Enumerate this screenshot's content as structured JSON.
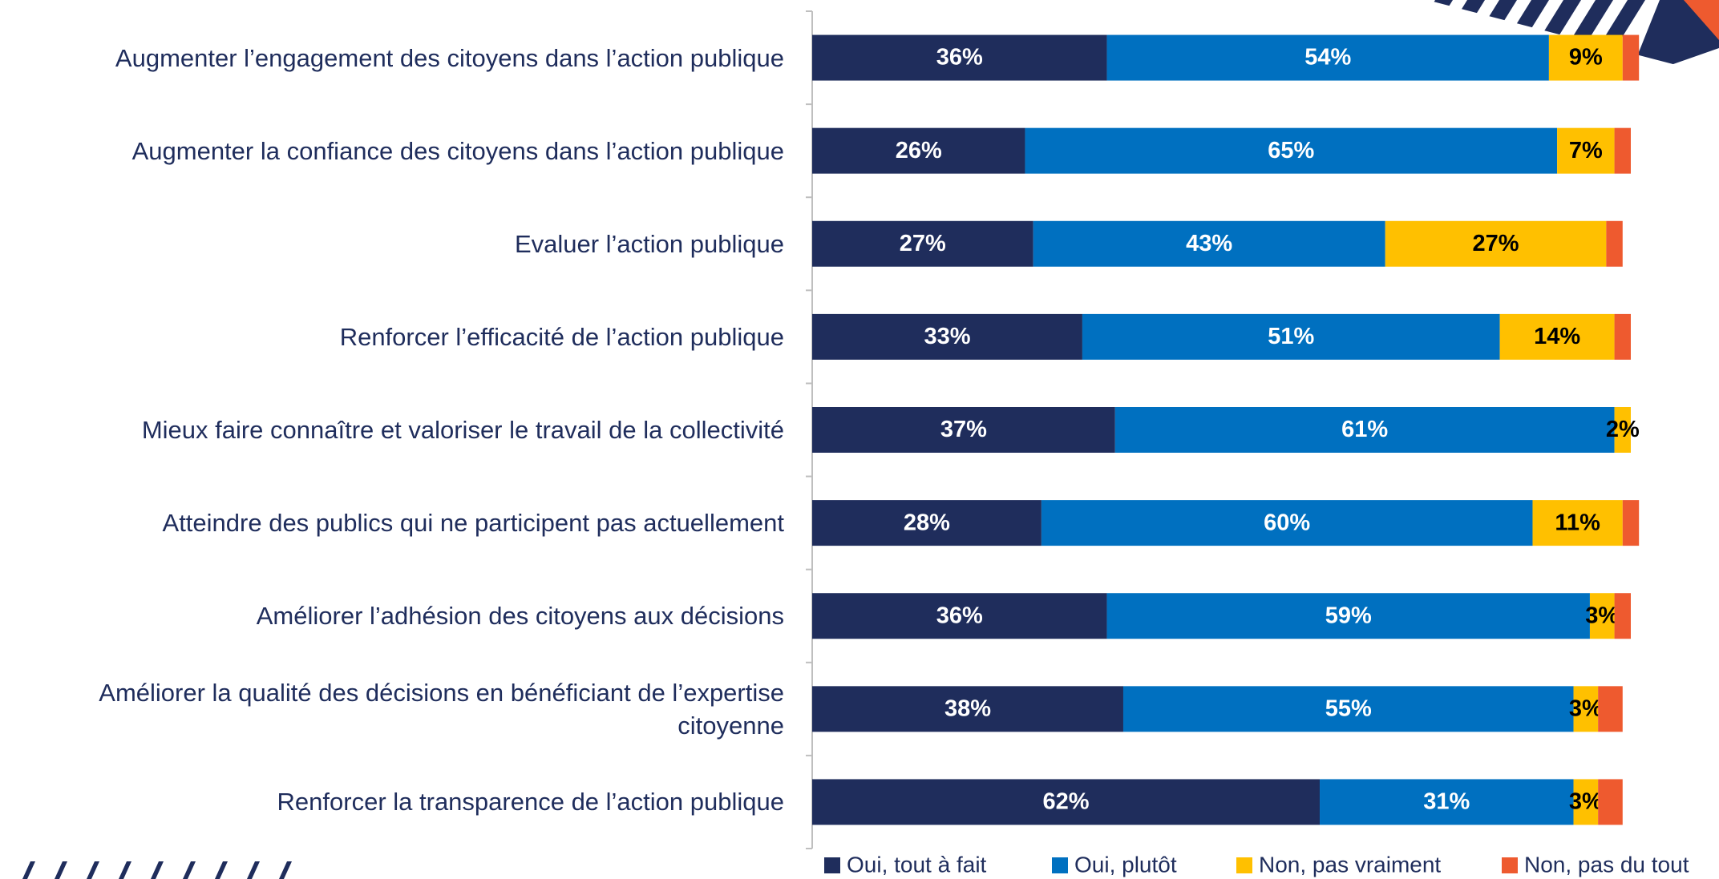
{
  "chart_data": {
    "type": "stacked_bar_horizontal",
    "categories": [
      "Augmenter l’engagement des citoyens dans l’action publique",
      "Augmenter la confiance des citoyens dans l’action publique",
      "Evaluer l’action publique",
      "Renforcer l’efficacité de l’action publique",
      "Mieux faire connaître et valoriser le travail de la collectivité",
      "Atteindre des publics qui ne participent pas actuellement",
      "Améliorer l’adhésion des citoyens aux décisions",
      "Améliorer la qualité des décisions en bénéficiant de l’expertise citoyenne",
      "Renforcer la transparence de l’action publique"
    ],
    "xlim": [
      0,
      100
    ],
    "series": [
      {
        "name": "Oui, tout à fait",
        "color": "#1f2d5c",
        "values": [
          36,
          26,
          27,
          33,
          37,
          28,
          36,
          38,
          62
        ],
        "value_labels": [
          "36%",
          "26%",
          "27%",
          "33%",
          "37%",
          "28%",
          "36%",
          "38%",
          "62%"
        ]
      },
      {
        "name": "Oui, plutôt",
        "color": "#0070c0",
        "values": [
          54,
          65,
          43,
          51,
          61,
          60,
          59,
          55,
          31
        ],
        "value_labels": [
          "54%",
          "65%",
          "43%",
          "51%",
          "61%",
          "60%",
          "59%",
          "55%",
          "31%"
        ]
      },
      {
        "name": "Non, pas vraiment",
        "color": "#ffc000",
        "values": [
          9,
          7,
          27,
          14,
          2,
          11,
          3,
          3,
          3
        ],
        "value_labels": [
          "9%",
          "7%",
          "27%",
          "14%",
          "2%",
          "11%",
          "3%",
          "3%",
          "3%"
        ]
      },
      {
        "name": "Non, pas du tout",
        "color": "#ee5a2f",
        "values": [
          2,
          2,
          2,
          2,
          0,
          2,
          2,
          3,
          3
        ]
      }
    ]
  }
}
